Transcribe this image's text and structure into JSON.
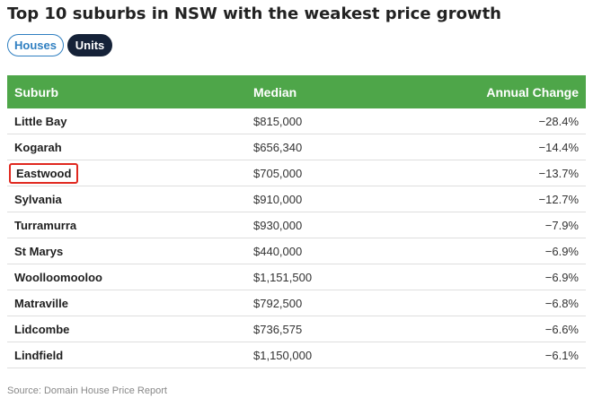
{
  "title": "Top 10 suburbs in NSW with the weakest price growth",
  "toggles": [
    {
      "label": "Houses",
      "selected": false
    },
    {
      "label": "Units",
      "selected": true
    }
  ],
  "table": {
    "columns": [
      "Suburb",
      "Median",
      "Annual Change"
    ],
    "rows": [
      {
        "suburb": "Little Bay",
        "median": "$815,000",
        "change": "−28.4%"
      },
      {
        "suburb": "Kogarah",
        "median": "$656,340",
        "change": "−14.4%"
      },
      {
        "suburb": "Eastwood",
        "median": "$705,000",
        "change": "−13.7%",
        "highlighted": true
      },
      {
        "suburb": "Sylvania",
        "median": "$910,000",
        "change": "−12.7%"
      },
      {
        "suburb": "Turramurra",
        "median": "$930,000",
        "change": "−7.9%"
      },
      {
        "suburb": "St Marys",
        "median": "$440,000",
        "change": "−6.9%"
      },
      {
        "suburb": "Woolloomooloo",
        "median": "$1,151,500",
        "change": "−6.9%"
      },
      {
        "suburb": "Matraville",
        "median": "$792,500",
        "change": "−6.8%"
      },
      {
        "suburb": "Lidcombe",
        "median": "$736,575",
        "change": "−6.6%"
      },
      {
        "suburb": "Lindfield",
        "median": "$1,150,000",
        "change": "−6.1%"
      }
    ]
  },
  "colors": {
    "header_bg": "#4ea649",
    "houses_accent": "#2f7fc1",
    "units_bg": "#152238",
    "highlight_border": "#e0281f"
  },
  "source": "Source: Domain House Price Report"
}
